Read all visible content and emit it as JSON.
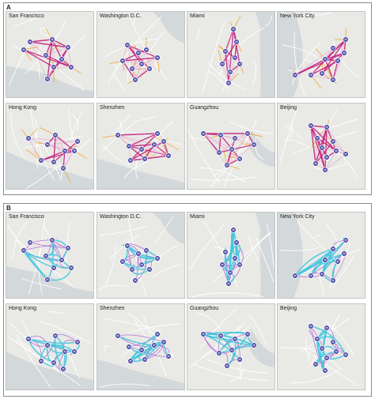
{
  "panels": [
    {
      "letter": "A",
      "mode": "flows"
    },
    {
      "letter": "B",
      "mode": "routes"
    }
  ],
  "cities": [
    "San Francisco",
    "Washington D.C.",
    "Miami",
    "New York City",
    "Hong Kong",
    "Shenzhen",
    "Guangzhou",
    "Beijing"
  ],
  "hub_glyph": "H",
  "colors": {
    "land": "#e9e9e6",
    "water": "#d3d8db",
    "flow_strong": "#c0197a",
    "flow_weak": "#e8a0c8",
    "flow_orange": "#f3a528",
    "route_cyan": "#3ec6dd",
    "route_purple": "#a34ad0",
    "hub_fill": "#3a3aa0"
  }
}
